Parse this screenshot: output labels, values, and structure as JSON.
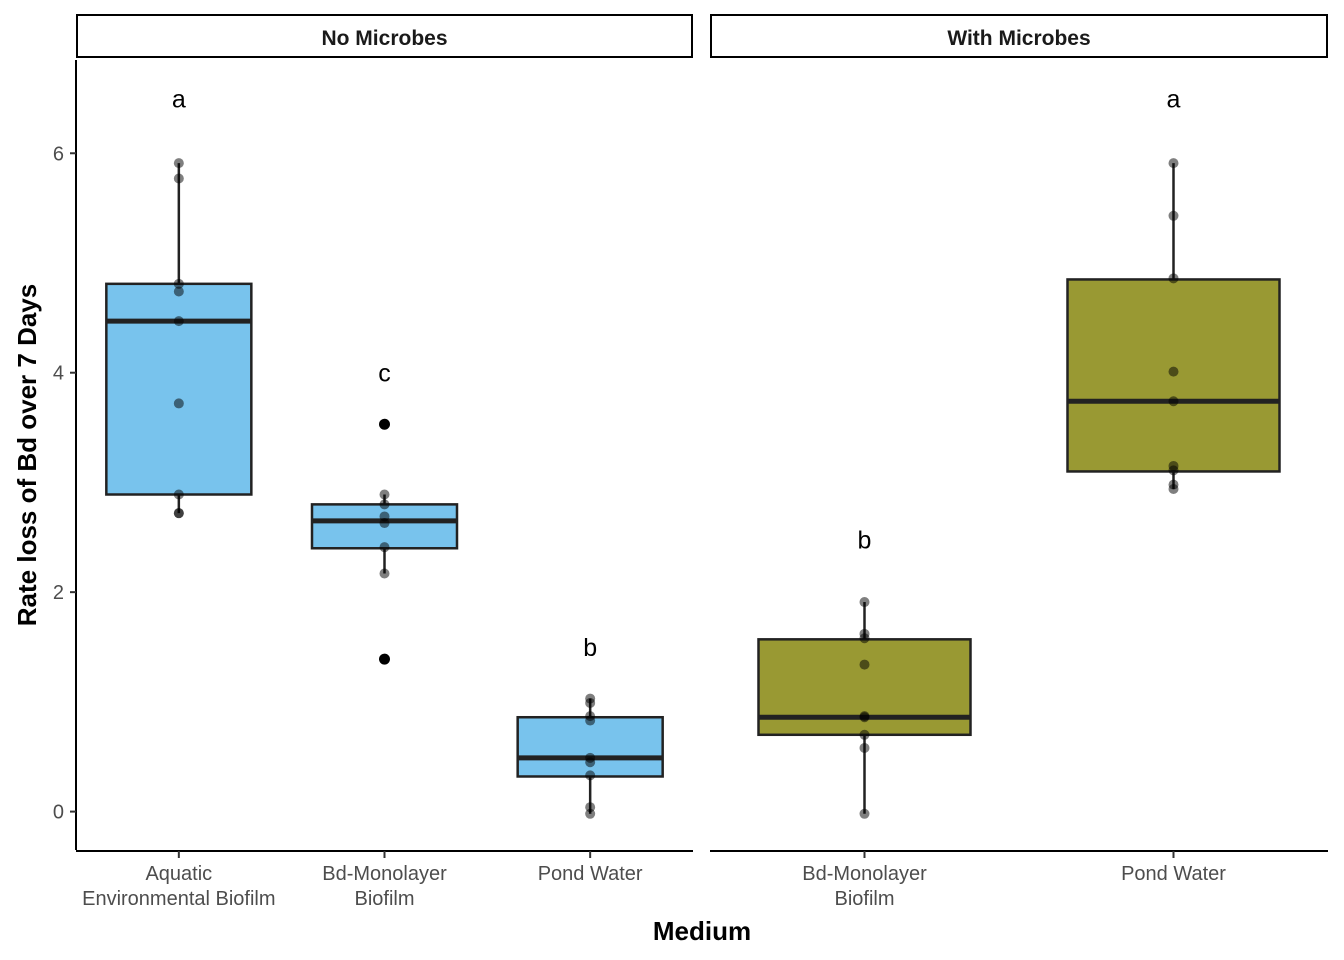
{
  "chart_data": {
    "type": "boxplot",
    "xlabel": "Medium",
    "ylabel": "Rate loss of Bd over 7 Days",
    "ylim": [
      -0.35,
      6.85
    ],
    "y_ticks": [
      0,
      2,
      4,
      6
    ],
    "grid": false,
    "legend": "none",
    "colors": {
      "No Microbes": "#56b4e9",
      "With Microbes": "#808000"
    },
    "facets": [
      {
        "title": "No Microbes",
        "color": "#56b4e9",
        "groups": [
          {
            "label_lines": [
              "Aquatic",
              "Environmental Biofilm"
            ],
            "box": {
              "whisker_low": 2.72,
              "q1": 2.89,
              "median": 4.47,
              "q3": 4.81,
              "whisker_high": 5.91
            },
            "outliers": [],
            "points": [
              5.91,
              5.77,
              4.81,
              4.74,
              4.47,
              3.72,
              2.89,
              2.72,
              2.72
            ],
            "letter": "a",
            "letter_y": 6.5
          },
          {
            "label_lines": [
              "Bd-Monolayer",
              "Biofilm"
            ],
            "box": {
              "whisker_low": 2.17,
              "q1": 2.4,
              "median": 2.65,
              "q3": 2.8,
              "whisker_high": 2.89
            },
            "outliers": [
              3.53,
              1.39
            ],
            "points": [
              3.53,
              2.89,
              2.8,
              2.69,
              2.63,
              2.41,
              2.17,
              1.39
            ],
            "letter": "c",
            "letter_y": 4.0
          },
          {
            "label_lines": [
              "Pond Water"
            ],
            "box": {
              "whisker_low": -0.02,
              "q1": 0.32,
              "median": 0.49,
              "q3": 0.86,
              "whisker_high": 1.03
            },
            "outliers": [],
            "points": [
              1.03,
              0.99,
              0.87,
              0.83,
              0.49,
              0.45,
              0.33,
              0.04,
              -0.02
            ],
            "letter": "b",
            "letter_y": 1.5
          }
        ]
      },
      {
        "title": "With Microbes",
        "color": "#808000",
        "groups": [
          {
            "label_lines": [
              "Bd-Monolayer",
              "Biofilm"
            ],
            "box": {
              "whisker_low": -0.02,
              "q1": 0.7,
              "median": 0.86,
              "q3": 1.57,
              "whisker_high": 1.91
            },
            "outliers": [],
            "points": [
              1.91,
              1.62,
              1.58,
              1.34,
              0.87,
              0.86,
              0.7,
              0.58,
              -0.02
            ],
            "letter": "b",
            "letter_y": 2.48
          },
          {
            "label_lines": [
              "Pond Water"
            ],
            "box": {
              "whisker_low": 2.94,
              "q1": 3.1,
              "median": 3.74,
              "q3": 4.85,
              "whisker_high": 5.91
            },
            "outliers": [],
            "points": [
              5.91,
              5.43,
              4.86,
              4.01,
              3.74,
              3.15,
              3.11,
              2.98,
              2.94
            ],
            "letter": "a",
            "letter_y": 6.5
          }
        ]
      }
    ]
  }
}
